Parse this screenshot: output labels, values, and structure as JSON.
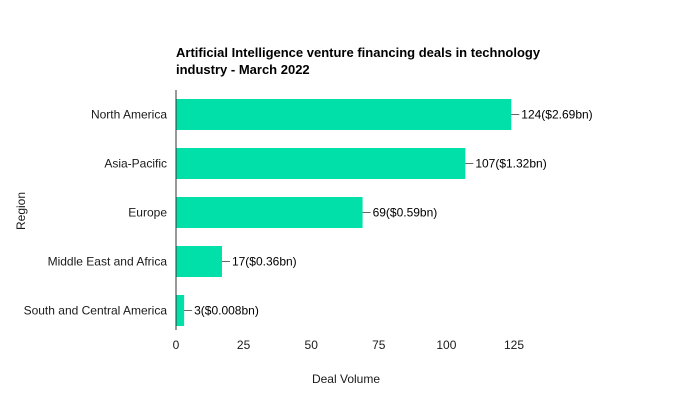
{
  "chart_data": {
    "type": "bar",
    "orientation": "horizontal",
    "title": "Artificial Intelligence venture financing deals in technology industry - March 2022",
    "title_lines": [
      "Artificial Intelligence venture financing deals in technology",
      "industry - March 2022"
    ],
    "xlabel": "Deal Volume",
    "ylabel": "Region",
    "categories": [
      "North America",
      "Asia-Pacific",
      "Europe",
      "Middle East and Africa",
      "South and Central America"
    ],
    "values": [
      124,
      107,
      69,
      17,
      3
    ],
    "data_labels": [
      "124($2.69bn)",
      "107($1.32bn)",
      "69($0.59bn)",
      "17($0.36bn)",
      "3($0.008bn)"
    ],
    "xlim": [
      0,
      125
    ],
    "xticks": [
      0,
      25,
      50,
      75,
      100,
      125
    ],
    "grid": false,
    "legend": "none",
    "bar_color": "#00e0a8"
  }
}
